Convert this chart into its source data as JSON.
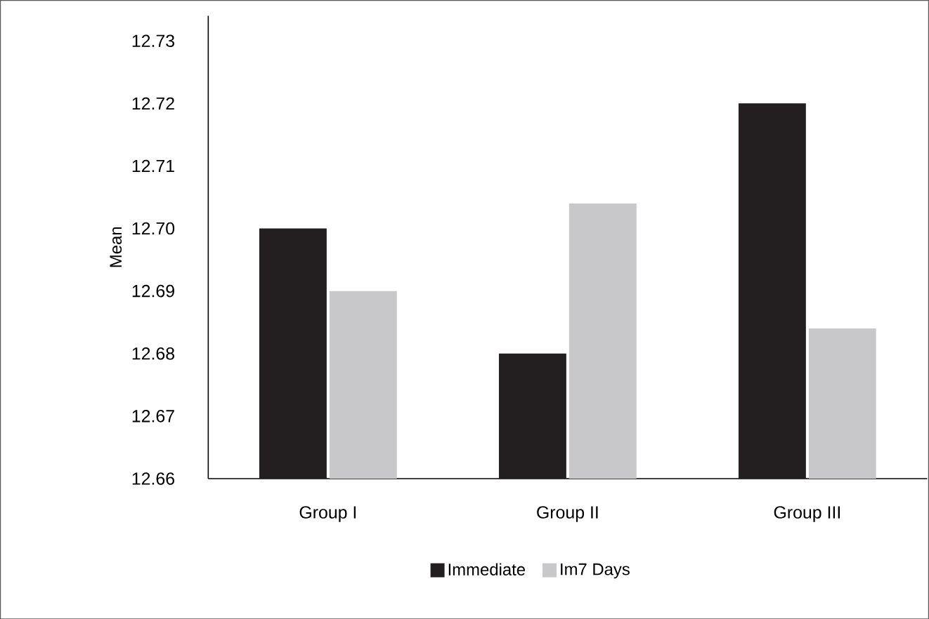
{
  "chart_data": {
    "type": "bar",
    "ylabel": "Mean",
    "categories": [
      "Group I",
      "Group II",
      "Group III"
    ],
    "series": [
      {
        "name": "Immediate",
        "color": "#231f20",
        "values": [
          12.7,
          12.68,
          12.72
        ]
      },
      {
        "name": "Im7 Days",
        "color": "#c8c8ca",
        "values": [
          12.69,
          12.704,
          12.684
        ]
      }
    ],
    "ylim": [
      12.66,
      12.734
    ],
    "yticks": [
      {
        "value": 12.66,
        "label": "12.66"
      },
      {
        "value": 12.67,
        "label": "12.67"
      },
      {
        "value": 12.68,
        "label": "12.68"
      },
      {
        "value": 12.69,
        "label": "12.69"
      },
      {
        "value": 12.7,
        "label": "12.70"
      },
      {
        "value": 12.71,
        "label": "12.71"
      },
      {
        "value": 12.72,
        "label": "12.72"
      },
      {
        "value": 12.73,
        "label": "12.73"
      }
    ],
    "legend": "bottom",
    "grid": false
  }
}
